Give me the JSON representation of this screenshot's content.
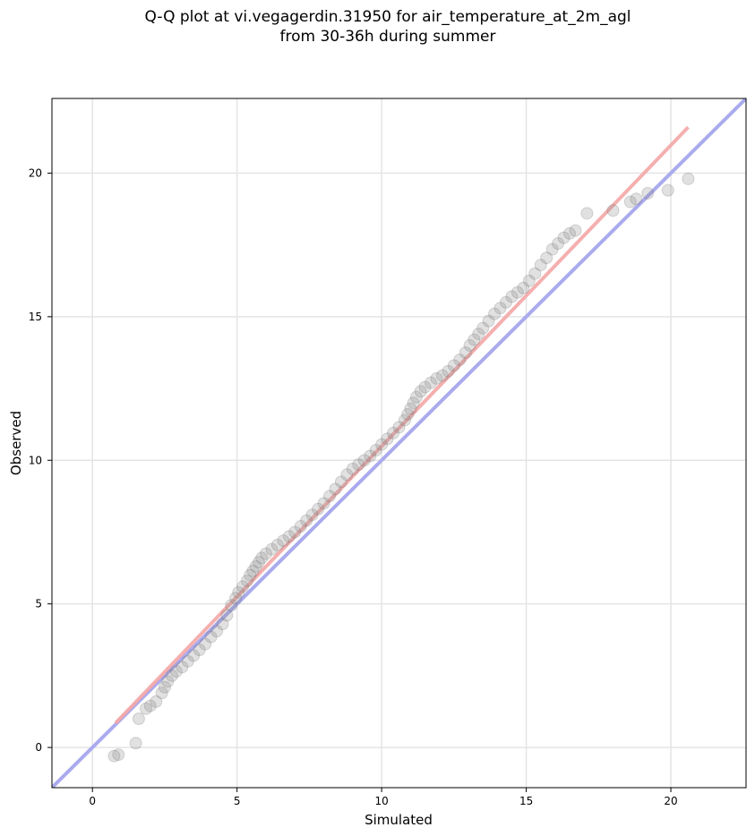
{
  "title_line1": "Q-Q plot at vi.vegagerdin.31950 for air_temperature_at_2m_agl",
  "title_line2": "from 30-36h during summer",
  "chart_data": {
    "type": "scatter",
    "xlabel": "Simulated",
    "ylabel": "Observed",
    "xlim": [
      -1.4,
      22.6
    ],
    "ylim": [
      -1.4,
      22.6
    ],
    "xticks": [
      0,
      5,
      10,
      15,
      20
    ],
    "yticks": [
      0,
      5,
      10,
      15,
      20
    ],
    "grid": true,
    "reference_line": {
      "color": "#aaaaee",
      "from": [
        -1.4,
        -1.4
      ],
      "to": [
        22.6,
        22.6
      ]
    },
    "fit_line": {
      "color": "#f4a6a6",
      "from": [
        0.8,
        0.85
      ],
      "to": [
        20.6,
        21.6
      ]
    },
    "point_color": "#888888",
    "x_quantiles": [
      0.75,
      0.9,
      1.5,
      1.6,
      1.85,
      2.0,
      2.2,
      2.4,
      2.5,
      2.6,
      2.75,
      2.9,
      3.1,
      3.3,
      3.5,
      3.7,
      3.9,
      4.1,
      4.3,
      4.5,
      4.65,
      4.8,
      4.95,
      5.05,
      5.2,
      5.35,
      5.45,
      5.55,
      5.65,
      5.75,
      5.85,
      6.0,
      6.2,
      6.4,
      6.6,
      6.8,
      7.0,
      7.2,
      7.4,
      7.6,
      7.8,
      8.0,
      8.2,
      8.4,
      8.6,
      8.8,
      9.0,
      9.2,
      9.4,
      9.6,
      9.8,
      10.0,
      10.2,
      10.4,
      10.6,
      10.8,
      10.9,
      11.0,
      11.1,
      11.2,
      11.35,
      11.5,
      11.7,
      11.9,
      12.1,
      12.3,
      12.5,
      12.7,
      12.9,
      13.05,
      13.2,
      13.35,
      13.5,
      13.7,
      13.9,
      14.1,
      14.3,
      14.5,
      14.7,
      14.9,
      15.1,
      15.3,
      15.5,
      15.7,
      15.9,
      16.1,
      16.3,
      16.5,
      16.7,
      17.1,
      18.0,
      18.6,
      18.8,
      19.2,
      19.9,
      20.6
    ],
    "y_quantiles": [
      -0.3,
      -0.25,
      0.15,
      1.0,
      1.35,
      1.45,
      1.6,
      1.9,
      2.1,
      2.3,
      2.5,
      2.65,
      2.8,
      3.0,
      3.2,
      3.4,
      3.6,
      3.85,
      4.05,
      4.3,
      4.6,
      4.95,
      5.2,
      5.4,
      5.6,
      5.8,
      6.0,
      6.15,
      6.3,
      6.45,
      6.6,
      6.75,
      6.9,
      7.05,
      7.2,
      7.35,
      7.5,
      7.7,
      7.9,
      8.1,
      8.3,
      8.5,
      8.75,
      9.0,
      9.25,
      9.5,
      9.7,
      9.85,
      10.0,
      10.15,
      10.35,
      10.55,
      10.75,
      10.95,
      11.15,
      11.4,
      11.6,
      11.8,
      12.0,
      12.2,
      12.4,
      12.55,
      12.7,
      12.85,
      12.95,
      13.1,
      13.3,
      13.5,
      13.75,
      14.0,
      14.2,
      14.4,
      14.6,
      14.85,
      15.1,
      15.3,
      15.5,
      15.7,
      15.85,
      16.0,
      16.25,
      16.5,
      16.8,
      17.05,
      17.35,
      17.55,
      17.75,
      17.9,
      18.0,
      18.6,
      18.7,
      19.0,
      19.1,
      19.3,
      19.4,
      19.8
    ]
  }
}
